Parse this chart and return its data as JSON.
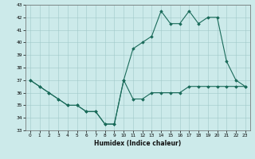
{
  "title": "",
  "xlabel": "Humidex (Indice chaleur)",
  "ylabel": "",
  "bg_color": "#cceaea",
  "line_color": "#1a6b5a",
  "ylim": [
    33,
    43
  ],
  "xlim": [
    -0.5,
    23.5
  ],
  "yticks": [
    33,
    34,
    35,
    36,
    37,
    38,
    39,
    40,
    41,
    42,
    43
  ],
  "xticks": [
    0,
    1,
    2,
    3,
    4,
    5,
    6,
    7,
    8,
    9,
    10,
    11,
    12,
    13,
    14,
    15,
    16,
    17,
    18,
    19,
    20,
    21,
    22,
    23
  ],
  "series1_x": [
    0,
    1,
    2,
    3,
    4,
    5,
    6,
    7,
    8,
    9,
    10,
    11,
    12,
    13,
    14,
    15,
    16,
    17,
    18,
    19,
    20,
    21,
    22,
    23
  ],
  "series1_y": [
    37.0,
    36.5,
    36.0,
    35.5,
    35.0,
    35.0,
    34.5,
    34.5,
    33.5,
    33.5,
    37.0,
    35.5,
    35.5,
    36.0,
    36.0,
    36.0,
    36.0,
    36.5,
    36.5,
    36.5,
    36.5,
    36.5,
    36.5,
    36.5
  ],
  "series2_x": [
    0,
    1,
    2,
    3,
    4,
    5,
    6,
    7,
    8,
    9,
    10,
    11,
    12,
    13,
    14,
    15,
    16,
    17,
    18,
    19,
    20,
    21,
    22,
    23
  ],
  "series2_y": [
    37.0,
    36.5,
    36.0,
    35.5,
    35.0,
    35.0,
    34.5,
    34.5,
    33.5,
    33.5,
    37.0,
    39.5,
    40.0,
    40.5,
    42.5,
    41.5,
    41.5,
    42.5,
    41.5,
    42.0,
    42.0,
    38.5,
    37.0,
    36.5
  ]
}
